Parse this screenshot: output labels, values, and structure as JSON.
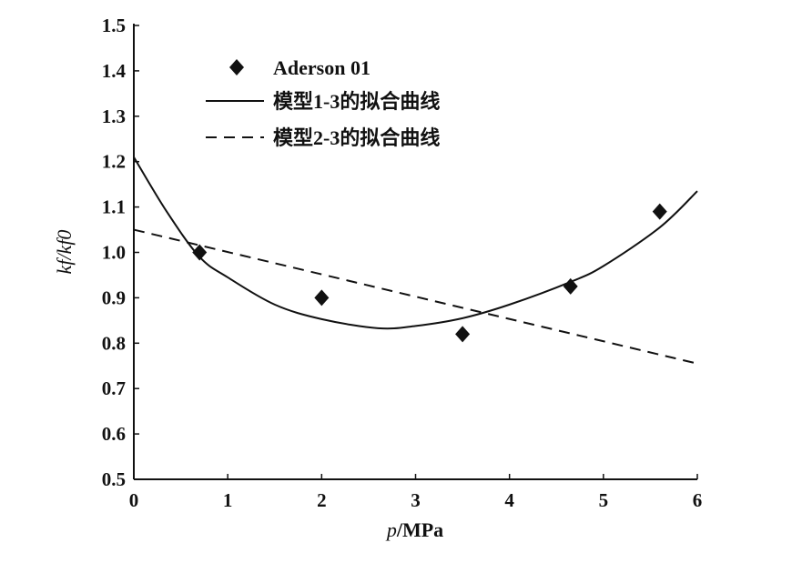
{
  "chart_data": {
    "type": "scatter",
    "title": "",
    "xlabel": "p/MPa",
    "xlabel_var": "p",
    "xlabel_unit": "/MPa",
    "ylabel": "kf/kf0",
    "xlim": [
      0,
      6
    ],
    "ylim": [
      0.5,
      1.5
    ],
    "xticks": [
      "0",
      "1",
      "2",
      "3",
      "4",
      "5",
      "6"
    ],
    "yticks": [
      "0.5",
      "0.6",
      "0.7",
      "0.8",
      "0.9",
      "1.0",
      "1.1",
      "1.2",
      "1.3",
      "1.4",
      "1.5"
    ],
    "grid": false,
    "legend_position": "top-left",
    "series": [
      {
        "name": "Aderson 01",
        "kind": "scatter",
        "marker": "diamond",
        "x": [
          0.7,
          2.0,
          3.5,
          4.65,
          5.6
        ],
        "y": [
          1.0,
          0.9,
          0.82,
          0.925,
          1.09
        ]
      },
      {
        "name": "模型1-3的拟合曲线",
        "kind": "line",
        "style": "solid",
        "x": [
          0,
          0.35,
          0.7,
          1.0,
          1.5,
          2.0,
          2.6,
          3.0,
          3.5,
          4.0,
          4.65,
          5.0,
          5.6,
          6.0
        ],
        "y": [
          1.21,
          1.09,
          0.99,
          0.945,
          0.885,
          0.853,
          0.833,
          0.838,
          0.855,
          0.885,
          0.935,
          0.97,
          1.055,
          1.135
        ]
      },
      {
        "name": "模型2-3的拟合曲线",
        "kind": "line",
        "style": "dashed",
        "x": [
          0,
          6
        ],
        "y": [
          1.05,
          0.755
        ]
      }
    ]
  }
}
